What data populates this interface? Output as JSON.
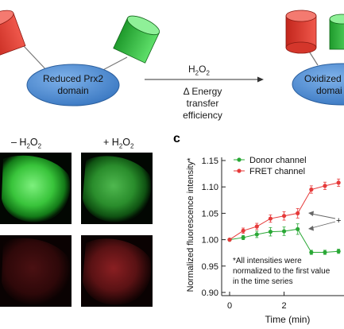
{
  "scheme": {
    "reduced_domain": [
      "Reduced Prx2",
      "domain"
    ],
    "oxidized_domain": [
      "Oxidized P",
      "domai"
    ],
    "oxidant_base": "H",
    "oxidant_sub1": "2",
    "oxidant_mid": "O",
    "oxidant_sub2": "2",
    "effect_lines": [
      "Δ Energy",
      "transfer",
      "efficiency"
    ],
    "colors": {
      "donor": "#2ecc40",
      "acceptor": "#e8382d",
      "domain": "#4f8fd6"
    }
  },
  "images": {
    "minus_label_prefix": "– H",
    "plus_label_prefix": "+ H",
    "label_sub1": "2",
    "label_mid": "O",
    "label_sub2": "2"
  },
  "panel_c": {
    "letter": "c",
    "note_lines": [
      "*All intensities were",
      "normalized to the first value",
      "in the time series"
    ],
    "arrow_label": "+"
  },
  "chart_data": {
    "type": "line",
    "xlabel": "Time (min)",
    "ylabel": "Normalized fluorescence intensity*",
    "xlim": [
      0,
      4.2
    ],
    "ylim": [
      0.9,
      1.15
    ],
    "xticks": [
      0,
      2
    ],
    "yticks": [
      "0.90",
      "0.95",
      "1.00",
      "1.05",
      "1.10",
      "1.15"
    ],
    "legend_placement": "top-right",
    "series": [
      {
        "name": "Donor channel",
        "color": "#2aa836",
        "x": [
          0,
          0.5,
          1.0,
          1.5,
          2.0,
          2.5,
          3.0,
          3.5,
          4.0
        ],
        "y": [
          1.0,
          1.004,
          1.01,
          1.015,
          1.016,
          1.02,
          0.976,
          0.976,
          0.978
        ],
        "err": [
          0,
          0.004,
          0.006,
          0.008,
          0.008,
          0.01,
          0.004,
          0.004,
          0.004
        ]
      },
      {
        "name": "FRET channel",
        "color": "#e63a3a",
        "x": [
          0,
          0.5,
          1.0,
          1.5,
          2.0,
          2.5,
          3.0,
          3.5,
          4.0
        ],
        "y": [
          1.0,
          1.017,
          1.025,
          1.04,
          1.045,
          1.05,
          1.095,
          1.102,
          1.108
        ],
        "err": [
          0,
          0.005,
          0.006,
          0.007,
          0.008,
          0.009,
          0.007,
          0.007,
          0.007
        ]
      }
    ]
  }
}
